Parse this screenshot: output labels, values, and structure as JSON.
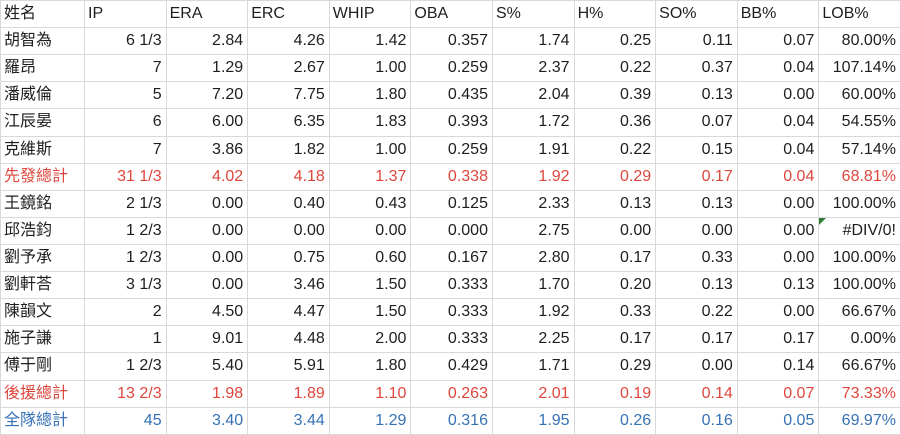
{
  "sheet": {
    "columns": [
      "姓名",
      "IP",
      "ERA",
      "ERC",
      "WHIP",
      "OBA",
      "S%",
      "H%",
      "SO%",
      "BB%",
      "LOB%"
    ],
    "column_keys": [
      "name",
      "ip",
      "era",
      "erc",
      "whip",
      "oba",
      "s-pct",
      "h-pct",
      "so-pct",
      "bb-pct",
      "lob-pct"
    ],
    "rows": [
      {
        "name": "胡智為",
        "style": "normal",
        "values": [
          "6 1/3",
          "2.84",
          "4.26",
          "1.42",
          "0.357",
          "1.74",
          "0.25",
          "0.11",
          "0.07",
          "80.00%"
        ]
      },
      {
        "name": "羅昂",
        "style": "normal",
        "values": [
          "7",
          "1.29",
          "2.67",
          "1.00",
          "0.259",
          "2.37",
          "0.22",
          "0.37",
          "0.04",
          "107.14%"
        ]
      },
      {
        "name": "潘威倫",
        "style": "normal",
        "values": [
          "5",
          "7.20",
          "7.75",
          "1.80",
          "0.435",
          "2.04",
          "0.39",
          "0.13",
          "0.00",
          "60.00%"
        ]
      },
      {
        "name": "江辰晏",
        "style": "normal",
        "values": [
          "6",
          "6.00",
          "6.35",
          "1.83",
          "0.393",
          "1.72",
          "0.36",
          "0.07",
          "0.04",
          "54.55%"
        ]
      },
      {
        "name": "克維斯",
        "style": "normal",
        "values": [
          "7",
          "3.86",
          "1.82",
          "1.00",
          "0.259",
          "1.91",
          "0.22",
          "0.15",
          "0.04",
          "57.14%"
        ]
      },
      {
        "name": "先發總計",
        "style": "subtotal",
        "values": [
          "31 1/3",
          "4.02",
          "4.18",
          "1.37",
          "0.338",
          "1.92",
          "0.29",
          "0.17",
          "0.04",
          "68.81%"
        ]
      },
      {
        "name": "王鏡銘",
        "style": "normal",
        "values": [
          "2 1/3",
          "0.00",
          "0.40",
          "0.43",
          "0.125",
          "2.33",
          "0.13",
          "0.13",
          "0.00",
          "100.00%"
        ]
      },
      {
        "name": "邱浩鈞",
        "style": "normal",
        "values": [
          "1 2/3",
          "0.00",
          "0.00",
          "0.00",
          "0.000",
          "2.75",
          "0.00",
          "0.00",
          "0.00",
          "#DIV/0!"
        ],
        "error_marker_value_index": 9
      },
      {
        "name": "劉予承",
        "style": "normal",
        "values": [
          "1 2/3",
          "0.00",
          "0.75",
          "0.60",
          "0.167",
          "2.80",
          "0.17",
          "0.33",
          "0.00",
          "100.00%"
        ]
      },
      {
        "name": "劉軒荅",
        "style": "normal",
        "values": [
          "3 1/3",
          "0.00",
          "3.46",
          "1.50",
          "0.333",
          "1.70",
          "0.20",
          "0.13",
          "0.13",
          "100.00%"
        ]
      },
      {
        "name": "陳韻文",
        "style": "normal",
        "values": [
          "2",
          "4.50",
          "4.47",
          "1.50",
          "0.333",
          "1.92",
          "0.33",
          "0.22",
          "0.00",
          "66.67%"
        ]
      },
      {
        "name": "施子謙",
        "style": "normal",
        "values": [
          "1",
          "9.01",
          "4.48",
          "2.00",
          "0.333",
          "2.25",
          "0.17",
          "0.17",
          "0.17",
          "0.00%"
        ]
      },
      {
        "name": "傅于剛",
        "style": "normal",
        "values": [
          "1 2/3",
          "5.40",
          "5.91",
          "1.80",
          "0.429",
          "1.71",
          "0.29",
          "0.00",
          "0.14",
          "66.67%"
        ]
      },
      {
        "name": "後援總計",
        "style": "subtotal",
        "values": [
          "13 2/3",
          "1.98",
          "1.89",
          "1.10",
          "0.263",
          "2.01",
          "0.19",
          "0.14",
          "0.07",
          "73.33%"
        ]
      },
      {
        "name": "全隊總計",
        "style": "total",
        "values": [
          "45",
          "3.40",
          "3.44",
          "1.29",
          "0.316",
          "1.95",
          "0.26",
          "0.16",
          "0.05",
          "69.97%"
        ]
      }
    ]
  },
  "colors": {
    "normal_text": "#1e1e1e",
    "subtotal_red": "#de463c",
    "total_blue": "#3572b5",
    "gridline": "#d9d9d9",
    "error_indicator_green": "#2f7d32",
    "background": "#ffffff"
  }
}
